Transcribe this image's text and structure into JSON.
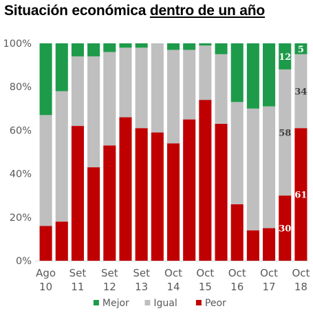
{
  "title": {
    "part1": "Situación económica ",
    "part2": "dentro de un año"
  },
  "chart_data": {
    "type": "bar",
    "stacked": true,
    "categories": [
      [
        "Ago",
        "10"
      ],
      [
        "",
        ""
      ],
      [
        "Set",
        "11"
      ],
      [
        "",
        ""
      ],
      [
        "Set",
        "12"
      ],
      [
        "",
        ""
      ],
      [
        "Set",
        "13"
      ],
      [
        "",
        ""
      ],
      [
        "Oct",
        "14"
      ],
      [
        "",
        ""
      ],
      [
        "Oct",
        "15"
      ],
      [
        "",
        ""
      ],
      [
        "Oct",
        "16"
      ],
      [
        "",
        ""
      ],
      [
        "Oct",
        "17"
      ],
      [
        "",
        ""
      ],
      [
        "Oct",
        "18"
      ]
    ],
    "series": [
      {
        "name": "Peor",
        "color": "#c00000",
        "values": [
          16,
          18,
          62,
          43,
          53,
          66,
          61,
          59,
          54,
          65,
          74,
          63,
          26,
          14,
          15,
          30,
          61
        ]
      },
      {
        "name": "Igual",
        "color": "#bfbfbf",
        "values": [
          51,
          60,
          32,
          51,
          43,
          32,
          37,
          41,
          43,
          32,
          25,
          32,
          47,
          56,
          56,
          58,
          34
        ]
      },
      {
        "name": "Mejor",
        "color": "#1e9b4a",
        "values": [
          33,
          22,
          6,
          6,
          4,
          2,
          2,
          0,
          3,
          3,
          1,
          5,
          27,
          30,
          29,
          12,
          5
        ]
      }
    ],
    "data_labels": [
      {
        "text": "30",
        "bar": 15,
        "series": "Peor",
        "color": "#ffffff"
      },
      {
        "text": "61",
        "bar": 16,
        "series": "Peor",
        "color": "#ffffff"
      },
      {
        "text": "58",
        "bar": 15,
        "series": "Igual",
        "color": "#404040"
      },
      {
        "text": "34",
        "bar": 16,
        "series": "Igual",
        "color": "#404040"
      },
      {
        "text": "12",
        "bar": 15,
        "series": "Mejor",
        "color": "#ffffff"
      },
      {
        "text": "5",
        "bar": 16,
        "series": "Mejor",
        "color": "#ffffff"
      }
    ],
    "yticks": [
      "0%",
      "20%",
      "40%",
      "60%",
      "80%",
      "100%"
    ],
    "ylim": [
      0,
      100
    ],
    "legend": {
      "position": "bottom",
      "order": [
        "Mejor",
        "Igual",
        "Peor"
      ]
    },
    "grid": false
  }
}
